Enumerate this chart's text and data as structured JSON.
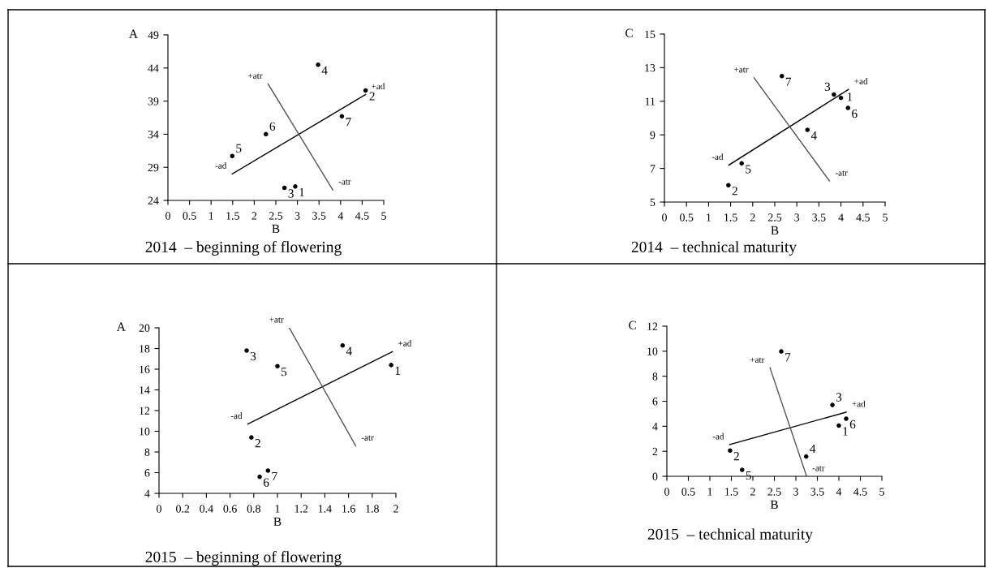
{
  "chart_data": [
    {
      "type": "scatter",
      "title": "2014  – beginning of flowering",
      "xlabel": "B",
      "ylabel": "A",
      "xlim": [
        0,
        5
      ],
      "ylim": [
        24,
        49
      ],
      "xticks": [
        0,
        0.5,
        1,
        1.5,
        2,
        2.5,
        3,
        3.5,
        4,
        4.5,
        5
      ],
      "yticks": [
        24,
        29,
        34,
        39,
        44,
        49
      ],
      "grid": false,
      "series": [
        {
          "color": "#000000",
          "marker": "circle",
          "x": [
            2.95,
            4.58,
            2.7,
            3.48,
            1.49,
            2.27,
            4.03
          ],
          "values": [
            26.1,
            40.6,
            25.9,
            44.5,
            30.7,
            34.0,
            36.7
          ]
        },
        {
          "type": "line",
          "marker": "none",
          "color": "#000000",
          "x": [
            1.49,
            4.58
          ],
          "values": [
            28.0,
            40.0
          ]
        },
        {
          "type": "line",
          "marker": "none",
          "color": "#555555",
          "x": [
            2.32,
            3.82
          ],
          "values": [
            41.6,
            25.6
          ]
        }
      ],
      "annotations": [
        {
          "text": "1",
          "x": 2.95,
          "y": 26.1
        },
        {
          "text": "2",
          "x": 4.58,
          "y": 40.6
        },
        {
          "text": "3",
          "x": 2.7,
          "y": 25.9
        },
        {
          "text": "4",
          "x": 3.48,
          "y": 44.5
        },
        {
          "text": "5",
          "x": 1.49,
          "y": 30.7
        },
        {
          "text": "6",
          "x": 2.27,
          "y": 34.0
        },
        {
          "text": "7",
          "x": 4.03,
          "y": 36.7
        },
        {
          "text": "+ad",
          "x": 4.58,
          "y": 40.0
        },
        {
          "text": "-ad",
          "x": 1.49,
          "y": 28.0
        },
        {
          "text": "+atr",
          "x": 2.32,
          "y": 41.6
        },
        {
          "text": "-atr",
          "x": 3.82,
          "y": 25.6
        }
      ]
    },
    {
      "type": "scatter",
      "title": "2014  – technical maturity",
      "xlabel": "B",
      "ylabel": "C",
      "xlim": [
        0,
        5
      ],
      "ylim": [
        5,
        15
      ],
      "xticks": [
        0,
        0.5,
        1,
        1.5,
        2,
        2.5,
        3,
        3.5,
        4,
        4.5,
        5
      ],
      "yticks": [
        5,
        7,
        9,
        11,
        13,
        15
      ],
      "grid": false,
      "series": [
        {
          "color": "#000000",
          "marker": "circle",
          "x": [
            4.0,
            1.45,
            3.84,
            3.24,
            1.75,
            4.16,
            2.66
          ],
          "values": [
            11.2,
            6.0,
            11.4,
            9.3,
            7.3,
            10.6,
            12.5
          ]
        },
        {
          "type": "line",
          "marker": "none",
          "color": "#000000",
          "x": [
            1.46,
            4.17
          ],
          "values": [
            7.2,
            11.7
          ]
        },
        {
          "type": "line",
          "marker": "none",
          "color": "#555555",
          "x": [
            2.03,
            3.74
          ],
          "values": [
            12.4,
            6.25
          ]
        }
      ],
      "annotations": [
        {
          "text": "1",
          "x": 4.0,
          "y": 11.2
        },
        {
          "text": "2",
          "x": 1.45,
          "y": 6.0
        },
        {
          "text": "3",
          "x": 3.84,
          "y": 11.4
        },
        {
          "text": "4",
          "x": 3.24,
          "y": 9.3
        },
        {
          "text": "5",
          "x": 1.75,
          "y": 7.3
        },
        {
          "text": "6",
          "x": 4.16,
          "y": 10.6
        },
        {
          "text": "7",
          "x": 2.66,
          "y": 12.5
        },
        {
          "text": "+ad",
          "x": 4.17,
          "y": 11.7
        },
        {
          "text": "-ad",
          "x": 1.46,
          "y": 7.2
        },
        {
          "text": "+atr",
          "x": 2.03,
          "y": 12.4
        },
        {
          "text": "-atr",
          "x": 3.74,
          "y": 6.25
        }
      ]
    },
    {
      "type": "scatter",
      "title": "2015  – beginning of flowering",
      "xlabel": "B",
      "ylabel": "A",
      "xlim": [
        0,
        2
      ],
      "ylim": [
        4,
        20
      ],
      "xticks": [
        0,
        0.2,
        0.4,
        0.6,
        0.8,
        1,
        1.2,
        1.4,
        1.6,
        1.8,
        2
      ],
      "yticks": [
        4,
        6,
        8,
        10,
        12,
        14,
        16,
        18,
        20
      ],
      "grid": false,
      "series": [
        {
          "color": "#000000",
          "marker": "circle",
          "x": [
            1.96,
            0.78,
            0.74,
            1.55,
            1.0,
            0.85,
            0.92
          ],
          "values": [
            16.4,
            9.4,
            17.8,
            18.3,
            16.3,
            5.6,
            6.2
          ]
        },
        {
          "type": "line",
          "marker": "none",
          "color": "#000000",
          "x": [
            0.75,
            1.97
          ],
          "values": [
            10.7,
            17.7
          ]
        },
        {
          "type": "line",
          "marker": "none",
          "color": "#555555",
          "x": [
            1.1,
            1.66
          ],
          "values": [
            20.0,
            8.6
          ]
        }
      ],
      "annotations": [
        {
          "text": "1",
          "x": 1.96,
          "y": 16.4
        },
        {
          "text": "2",
          "x": 0.78,
          "y": 9.4
        },
        {
          "text": "3",
          "x": 0.74,
          "y": 17.8
        },
        {
          "text": "4",
          "x": 1.55,
          "y": 18.3
        },
        {
          "text": "5",
          "x": 1.0,
          "y": 16.3
        },
        {
          "text": "6",
          "x": 0.85,
          "y": 5.6
        },
        {
          "text": "7",
          "x": 0.92,
          "y": 6.2
        },
        {
          "text": "+ad",
          "x": 1.97,
          "y": 17.7
        },
        {
          "text": "-ad",
          "x": 0.75,
          "y": 10.7
        },
        {
          "text": "+atr",
          "x": 1.1,
          "y": 20.0
        },
        {
          "text": "-atr",
          "x": 1.66,
          "y": 8.6
        }
      ]
    },
    {
      "type": "scatter",
      "title": "2015  – technical maturity",
      "xlabel": "B",
      "ylabel": "C",
      "xlim": [
        0,
        5
      ],
      "ylim": [
        0,
        12
      ],
      "xticks": [
        0,
        0.5,
        1,
        1.5,
        2,
        2.5,
        3,
        3.5,
        4,
        4.5,
        5
      ],
      "yticks": [
        0,
        2,
        4,
        6,
        8,
        10,
        12
      ],
      "grid": false,
      "series": [
        {
          "color": "#000000",
          "marker": "circle",
          "x": [
            4.0,
            1.47,
            3.85,
            3.24,
            1.75,
            4.17,
            2.66
          ],
          "values": [
            4.05,
            2.06,
            5.7,
            1.58,
            0.52,
            4.61,
            9.98
          ]
        },
        {
          "type": "line",
          "marker": "none",
          "color": "#000000",
          "x": [
            1.46,
            4.17
          ],
          "values": [
            2.53,
            5.13
          ]
        },
        {
          "type": "line",
          "marker": "none",
          "color": "#555555",
          "x": [
            2.4,
            3.25
          ],
          "values": [
            8.66,
            0
          ]
        }
      ],
      "annotations": [
        {
          "text": "1",
          "x": 4.0,
          "y": 4.05
        },
        {
          "text": "2",
          "x": 1.47,
          "y": 2.06
        },
        {
          "text": "3",
          "x": 3.85,
          "y": 5.7
        },
        {
          "text": "4",
          "x": 3.24,
          "y": 1.58
        },
        {
          "text": "5",
          "x": 1.75,
          "y": 0.52
        },
        {
          "text": "6",
          "x": 4.17,
          "y": 4.61
        },
        {
          "text": "7",
          "x": 2.66,
          "y": 9.98
        },
        {
          "text": "+ad",
          "x": 4.17,
          "y": 5.13
        },
        {
          "text": "-ad",
          "x": 1.46,
          "y": 2.53
        },
        {
          "text": "+atr",
          "x": 2.4,
          "y": 8.66
        },
        {
          "text": "-atr",
          "x": 3.25,
          "y": 0
        }
      ]
    }
  ]
}
